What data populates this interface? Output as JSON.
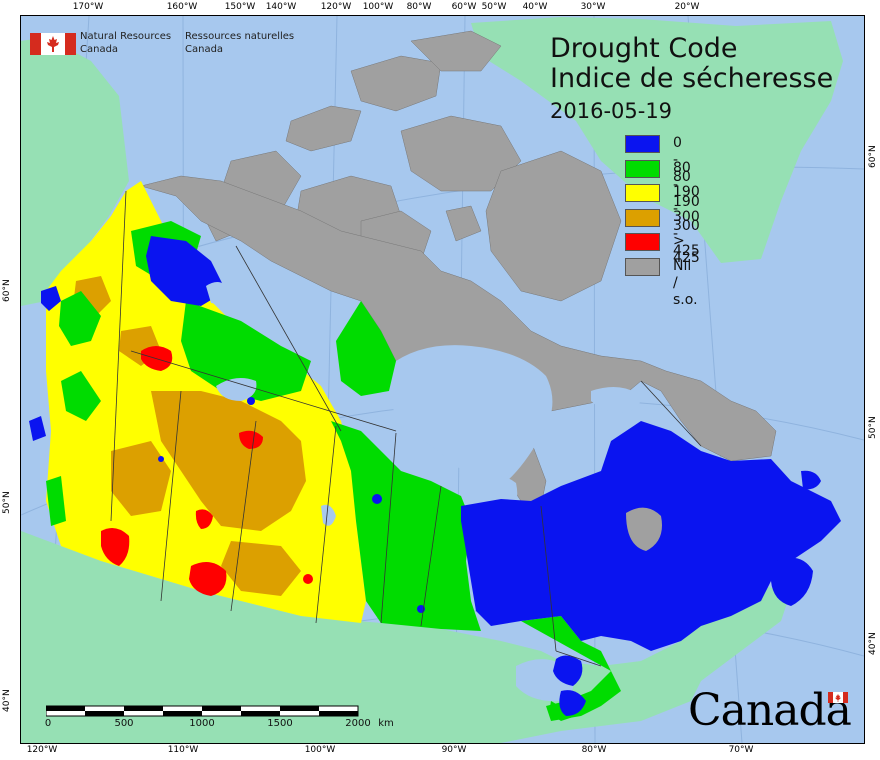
{
  "map": {
    "title_en": "Drought Code",
    "title_fr": "Indice de sécheresse",
    "date": "2016-05-19",
    "agency_en_line1": "Natural Resources",
    "agency_en_line2": "Canada",
    "agency_fr_line1": "Ressources naturelles",
    "agency_fr_line2": "Canada",
    "wordmark": "Canada",
    "legend": [
      {
        "label": "0 - 80",
        "color": "#0a14f0"
      },
      {
        "label": "80 - 190",
        "color": "#00dc00"
      },
      {
        "label": "190 - 300",
        "color": "#ffff00"
      },
      {
        "label": "300 - 425",
        "color": "#dca000"
      },
      {
        "label": "> 425",
        "color": "#ff0000"
      },
      {
        "label": "Nil / s.o.",
        "color": "#a0a0a0"
      }
    ],
    "colors": {
      "ocean": "#a7c8ee",
      "foreign_land": "#96e0b4",
      "no_data": "#a0a0a0"
    },
    "ticks_top": [
      "170°W",
      "160°W",
      "150°W",
      "140°W",
      "120°W",
      "100°W",
      "80°W",
      "60°W",
      "50°W",
      "40°W",
      "30°W",
      "20°W"
    ],
    "ticks_bottom": [
      "120°W",
      "110°W",
      "100°W",
      "90°W",
      "80°W",
      "70°W"
    ],
    "ticks_left": [
      "60°N",
      "50°N",
      "40°N"
    ],
    "ticks_right": [
      "60°N",
      "50°N",
      "40°N"
    ],
    "scale": {
      "labels": [
        "0",
        "500",
        "1000",
        "1500",
        "2000"
      ],
      "unit": "km"
    }
  }
}
